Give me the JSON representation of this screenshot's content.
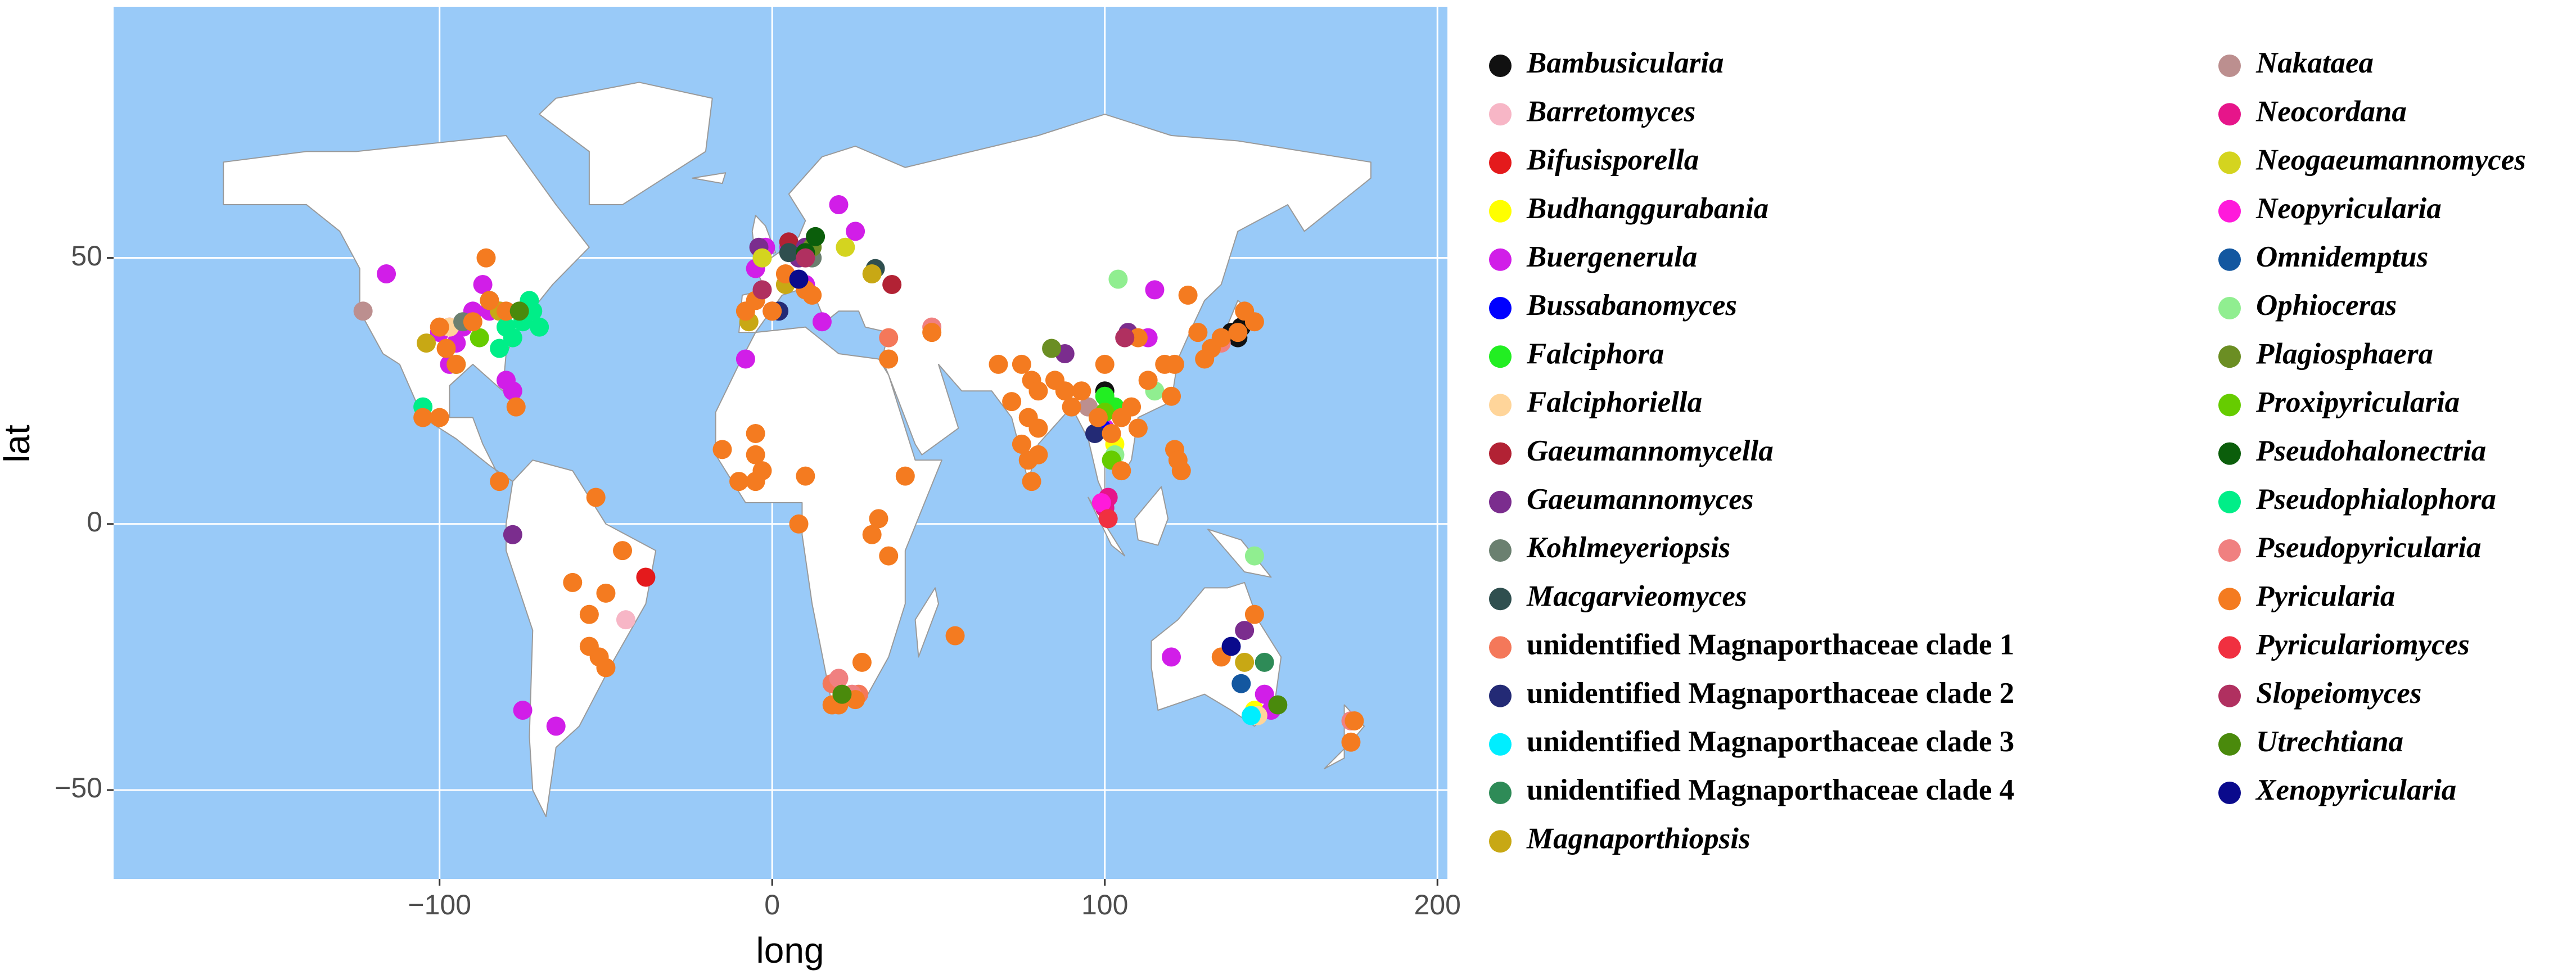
{
  "chart_data": {
    "type": "scatter",
    "x_label": "long",
    "y_label": "lat",
    "xlim": [
      -198,
      203
    ],
    "ylim": [
      -66.7,
      97.2
    ],
    "xticks": [
      {
        "value": -100,
        "label": "−100"
      },
      0,
      100,
      200
    ],
    "yticks": [
      {
        "value": -50,
        "label": "−50"
      },
      0,
      50
    ],
    "grid": true,
    "series": [
      {
        "name": "Bambusicularia",
        "color": "#111111",
        "x": [
          100,
          140,
          138,
          141
        ],
        "values": [
          25,
          35,
          36,
          37
        ]
      },
      {
        "name": "Barretomyces",
        "color": "#f7b6c6",
        "x": [
          -44
        ],
        "values": [
          -18
        ]
      },
      {
        "name": "Bifusisporella",
        "color": "#e41a1c",
        "x": [
          -38
        ],
        "values": [
          -10
        ]
      },
      {
        "name": "Budhanggurabania",
        "color": "#ffff00",
        "x": [
          145,
          103
        ],
        "values": [
          -35,
          15
        ]
      },
      {
        "name": "Buergenerula",
        "color": "#d11ee8",
        "x": [
          -116,
          -97,
          -90,
          -87,
          -85,
          -97,
          -80,
          -78,
          -82,
          -75,
          -65,
          -5,
          -2,
          5,
          10,
          20,
          25,
          15,
          -8,
          115,
          113,
          100,
          150,
          148,
          120,
          -95,
          -100,
          -93
        ],
        "values": [
          47,
          37,
          40,
          45,
          40,
          30,
          27,
          25,
          40,
          -35,
          -38,
          48,
          52,
          52,
          45,
          60,
          55,
          38,
          31,
          44,
          35,
          18,
          -35,
          -32,
          -25,
          34,
          36,
          37
        ]
      },
      {
        "name": "Bussabanomyces",
        "color": "#0000ff",
        "x": [
          99
        ],
        "values": [
          18
        ]
      },
      {
        "name": "Falciphora",
        "color": "#22ee22",
        "x": [
          -95,
          100,
          103
        ],
        "values": [
          30,
          24,
          22
        ]
      },
      {
        "name": "Falciphoriella",
        "color": "#ffd59a",
        "x": [
          -97,
          146
        ],
        "values": [
          37,
          -36
        ]
      },
      {
        "name": "Gaeumannomycella",
        "color": "#b22234",
        "x": [
          36,
          5
        ],
        "values": [
          45,
          53
        ]
      },
      {
        "name": "Gaeumannomyces",
        "color": "#7b2d8e",
        "x": [
          -78,
          -4,
          0,
          8,
          88,
          107,
          142,
          10
        ],
        "values": [
          -2,
          52,
          40,
          50,
          32,
          36,
          -20,
          52
        ]
      },
      {
        "name": "Kohlmeyeriopsis",
        "color": "#6b8070",
        "x": [
          -93,
          12
        ],
        "values": [
          38,
          50
        ]
      },
      {
        "name": "Macgarvieomyces",
        "color": "#2f4f4f",
        "x": [
          31,
          5
        ],
        "values": [
          48,
          51
        ]
      },
      {
        "name": "unidentified Magnaporthaceae clade 1",
        "italic": false,
        "color": "#f4785a",
        "x": [
          18,
          26,
          35
        ],
        "values": [
          -30,
          -32,
          35
        ]
      },
      {
        "name": "unidentified Magnaporthaceae clade 2",
        "italic": false,
        "color": "#232a75",
        "x": [
          2,
          97
        ],
        "values": [
          40,
          17
        ]
      },
      {
        "name": "unidentified Magnaporthaceae clade 3",
        "italic": false,
        "color": "#00eeff",
        "x": [
          144
        ],
        "values": [
          -36
        ]
      },
      {
        "name": "unidentified Magnaporthaceae clade 4",
        "italic": false,
        "color": "#2e8b57",
        "x": [
          -85,
          148
        ],
        "values": [
          42,
          -26
        ]
      },
      {
        "name": "Magnaporthiopsis",
        "color": "#c8a814",
        "x": [
          -104,
          -82,
          -7,
          4,
          142,
          30
        ],
        "values": [
          34,
          40,
          38,
          45,
          -26,
          47
        ]
      },
      {
        "name": "Nakataea",
        "color": "#bc8f8f",
        "x": [
          -123,
          95
        ],
        "values": [
          40,
          22
        ]
      },
      {
        "name": "Neocordana",
        "color": "#e6158a",
        "x": [
          100,
          101
        ],
        "values": [
          3,
          5
        ]
      },
      {
        "name": "Neogaeumannomyces",
        "color": "#d4d41f",
        "x": [
          22,
          -3
        ],
        "values": [
          52,
          50
        ]
      },
      {
        "name": "Neopyricularia",
        "color": "#ff1adb",
        "x": [
          99
        ],
        "values": [
          4
        ]
      },
      {
        "name": "Omnidemptus",
        "color": "#1357a0",
        "x": [
          141
        ],
        "values": [
          -30
        ]
      },
      {
        "name": "Ophioceras",
        "color": "#90ee90",
        "x": [
          104,
          115,
          145,
          103
        ],
        "values": [
          46,
          25,
          -6,
          13
        ]
      },
      {
        "name": "Plagiosphaera",
        "color": "#6b8e23",
        "x": [
          84,
          12
        ],
        "values": [
          33,
          52
        ]
      },
      {
        "name": "Proxipyricularia",
        "color": "#66cc00",
        "x": [
          102,
          100,
          -88
        ],
        "values": [
          12,
          21,
          35
        ]
      },
      {
        "name": "Pseudohalonectria",
        "color": "#0b5e0b",
        "x": [
          10,
          13
        ],
        "values": [
          51,
          54
        ]
      },
      {
        "name": "Pseudophialophora",
        "color": "#00ee88",
        "x": [
          -75,
          -72,
          -70,
          -73,
          -78,
          -80,
          -105,
          -82
        ],
        "values": [
          38,
          40,
          37,
          42,
          35,
          37,
          22,
          33
        ]
      },
      {
        "name": "Pseudopyricularia",
        "color": "#f08080",
        "x": [
          174,
          24,
          48,
          135,
          20
        ],
        "values": [
          -37,
          -32,
          37,
          34,
          -29
        ]
      },
      {
        "name": "Pyricularia",
        "color": "#f47b20",
        "x": [
          -98,
          -90,
          -85,
          -86,
          -100,
          -80,
          -95,
          -77,
          -105,
          -100,
          -82,
          -53,
          -60,
          -50,
          -55,
          -45,
          -52,
          -55,
          -50,
          -15,
          -5,
          -5,
          -10,
          -3,
          -5,
          10,
          8,
          30,
          32,
          35,
          40,
          27,
          18,
          20,
          25,
          55,
          48,
          -8,
          -5,
          0,
          10,
          12,
          4,
          35,
          68,
          75,
          78,
          77,
          75,
          77,
          78,
          80,
          72,
          85,
          88,
          90,
          93,
          80,
          80,
          98,
          102,
          105,
          108,
          110,
          105,
          113,
          100,
          110,
          118,
          121,
          120,
          121,
          122,
          123,
          128,
          132,
          135,
          140,
          142,
          145,
          130,
          125,
          145,
          135,
          174,
          175
        ],
        "values": [
          33,
          38,
          42,
          50,
          37,
          40,
          30,
          22,
          20,
          20,
          8,
          5,
          -11,
          -13,
          -17,
          -5,
          -25,
          -23,
          -27,
          14,
          8,
          13,
          8,
          10,
          17,
          9,
          0,
          -2,
          1,
          -6,
          9,
          -26,
          -34,
          -34,
          -33,
          -21,
          36,
          40,
          42,
          40,
          44,
          43,
          47,
          31,
          30,
          30,
          27,
          20,
          15,
          12,
          8,
          13,
          23,
          27,
          25,
          22,
          25,
          25,
          18,
          20,
          17,
          20,
          22,
          18,
          10,
          27,
          30,
          35,
          30,
          30,
          24,
          14,
          12,
          10,
          36,
          33,
          35,
          36,
          40,
          38,
          31,
          43,
          -17,
          -25,
          -41,
          -37
        ]
      },
      {
        "name": "Pyriculariomyces",
        "color": "#f03040",
        "x": [
          101
        ],
        "values": [
          1
        ]
      },
      {
        "name": "Slopeiomyces",
        "color": "#b03060",
        "x": [
          -3,
          106,
          10
        ],
        "values": [
          44,
          35,
          50
        ]
      },
      {
        "name": "Utrechtiana",
        "color": "#4a8a0c",
        "x": [
          -76,
          21,
          152
        ],
        "values": [
          40,
          -32,
          -34
        ]
      },
      {
        "name": "Xenopyricularia",
        "color": "#0a0a8c",
        "x": [
          138,
          8
        ],
        "values": [
          -23,
          46
        ]
      }
    ]
  }
}
